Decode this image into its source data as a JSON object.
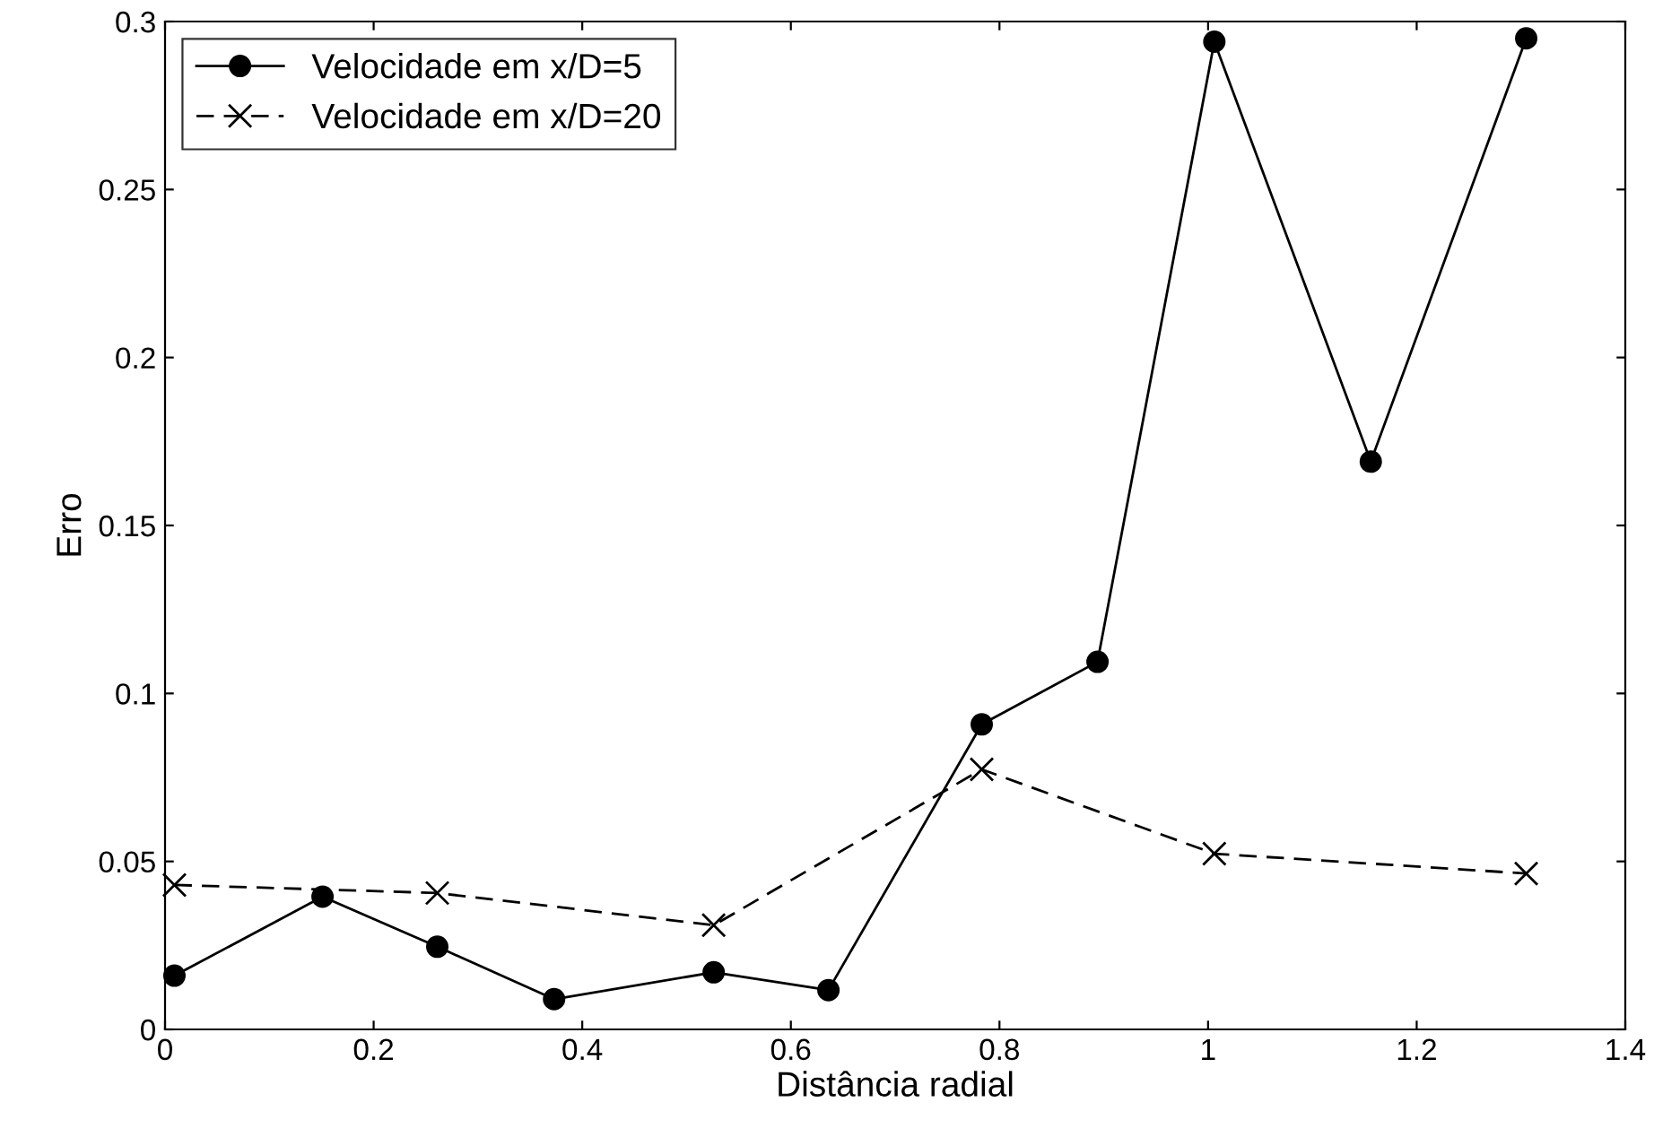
{
  "chart_data": {
    "type": "line",
    "xlabel": "Distância radial",
    "ylabel": "Erro",
    "xlim": [
      0,
      1.4
    ],
    "xticks": [
      0,
      0.2,
      0.4,
      0.6,
      0.8,
      1,
      1.2,
      1.4
    ],
    "ylim": [
      0,
      0.3
    ],
    "yticks": [
      0,
      0.05,
      0.1,
      0.15,
      0.2,
      0.25,
      0.3
    ],
    "grid": false,
    "legend": "top left",
    "series": [
      {
        "name": "Velocidade em x/D=5",
        "color": "#000000",
        "marker": "circle",
        "line_style": "solid",
        "x": [
          0.009,
          0.151,
          0.261,
          0.373,
          0.526,
          0.636,
          0.783,
          0.894,
          1.006,
          1.156,
          1.305
        ],
        "values": [
          0.016,
          0.0395,
          0.0246,
          0.009,
          0.017,
          0.0117,
          0.0908,
          0.1094,
          0.294,
          0.169,
          0.295
        ]
      },
      {
        "name": "Velocidade em x/D=20",
        "color": "#000000",
        "marker": "cross",
        "line_style": "dashed",
        "x": [
          0.009,
          0.261,
          0.526,
          0.783,
          1.006,
          1.305
        ],
        "values": [
          0.043,
          0.0406,
          0.031,
          0.0774,
          0.0523,
          0.0464
        ]
      }
    ]
  }
}
